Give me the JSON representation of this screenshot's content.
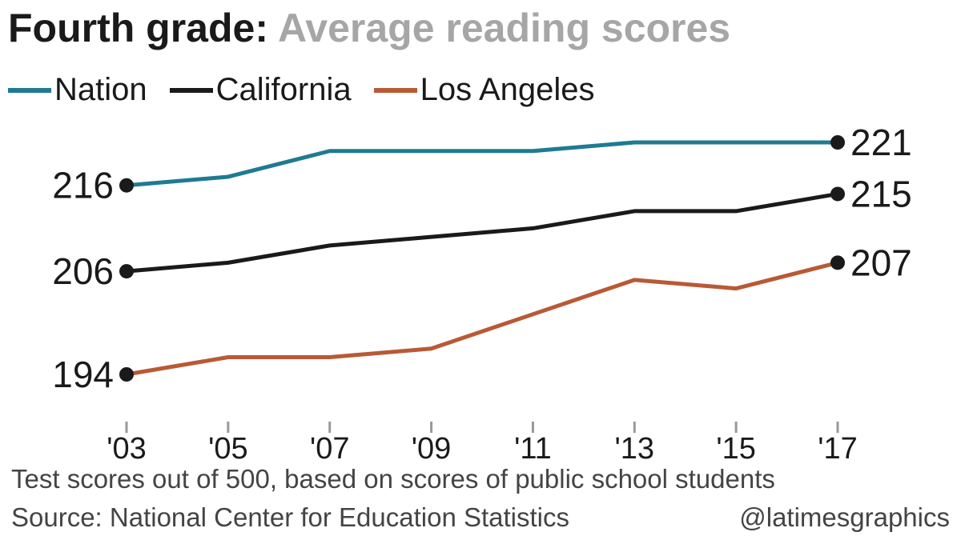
{
  "title": {
    "main": "Fourth grade:",
    "sub": "Average reading scores"
  },
  "colors": {
    "nation": "#1f7a93",
    "california": "#1a1a1a",
    "los_angeles": "#b85a35",
    "dot": "#1a1a1a",
    "tick": "#999999"
  },
  "chart_data": {
    "type": "line",
    "title": "Fourth grade: Average reading scores",
    "x": [
      "'03",
      "'05",
      "'07",
      "'09",
      "'11",
      "'13",
      "'15",
      "'17"
    ],
    "series": [
      {
        "name": "Nation",
        "values": [
          216,
          217,
          220,
          220,
          220,
          221,
          221,
          221
        ]
      },
      {
        "name": "California",
        "values": [
          206,
          207,
          209,
          210,
          211,
          213,
          213,
          215
        ]
      },
      {
        "name": "Los Angeles",
        "values": [
          194,
          196,
          196,
          197,
          201,
          205,
          204,
          207
        ]
      }
    ],
    "start_labels": [
      "216",
      "206",
      "194"
    ],
    "end_labels": [
      "221",
      "215",
      "207"
    ],
    "ylim": [
      191,
      225
    ],
    "grid": false,
    "legend": "top-left"
  },
  "note": "Test scores out of 500, based on scores of public school students",
  "source": "Source: National Center for Education Statistics",
  "credit": "@latimesgraphics"
}
